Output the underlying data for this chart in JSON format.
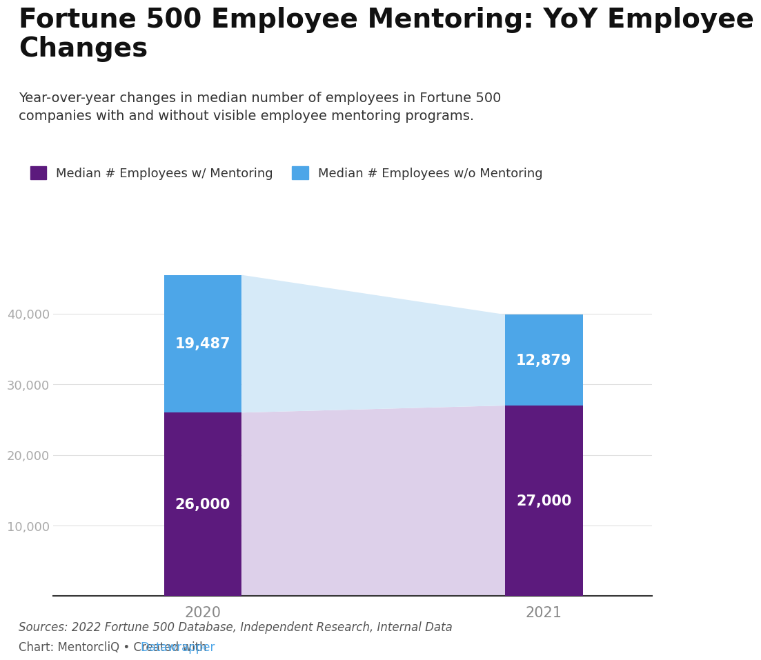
{
  "title": "Fortune 500 Employee Mentoring: YoY Employee\nChanges",
  "subtitle": "Year-over-year changes in median number of employees in Fortune 500\ncompanies with and without visible employee mentoring programs.",
  "categories": [
    "2020",
    "2021"
  ],
  "mentoring_values": [
    26000,
    27000
  ],
  "no_mentoring_values": [
    19487,
    12879
  ],
  "mentoring_color": "#5c1a7d",
  "no_mentoring_color": "#4da6e8",
  "mentoring_fade_color": "#ddd0ea",
  "no_mentoring_fade_color": "#d6eaf8",
  "label_mentoring": "Median # Employees w/ Mentoring",
  "label_no_mentoring": "Median # Employees w/o Mentoring",
  "ylim": [
    0,
    50000
  ],
  "yticks": [
    0,
    10000,
    20000,
    30000,
    40000
  ],
  "source_text": "Sources: 2022 Fortune 500 Database, Independent Research, Internal Data",
  "chart_text": "Chart: MentorcliQ • Created with ",
  "datawrapper_text": "Datawrapper",
  "datawrapper_color": "#4da6e8",
  "background_color": "#ffffff",
  "bar_width": 0.13,
  "bar_positions": [
    0.25,
    0.82
  ],
  "title_fontsize": 28,
  "subtitle_fontsize": 14,
  "legend_fontsize": 13,
  "bar_label_fontsize": 15,
  "axis_label_fontsize": 13,
  "source_fontsize": 12
}
